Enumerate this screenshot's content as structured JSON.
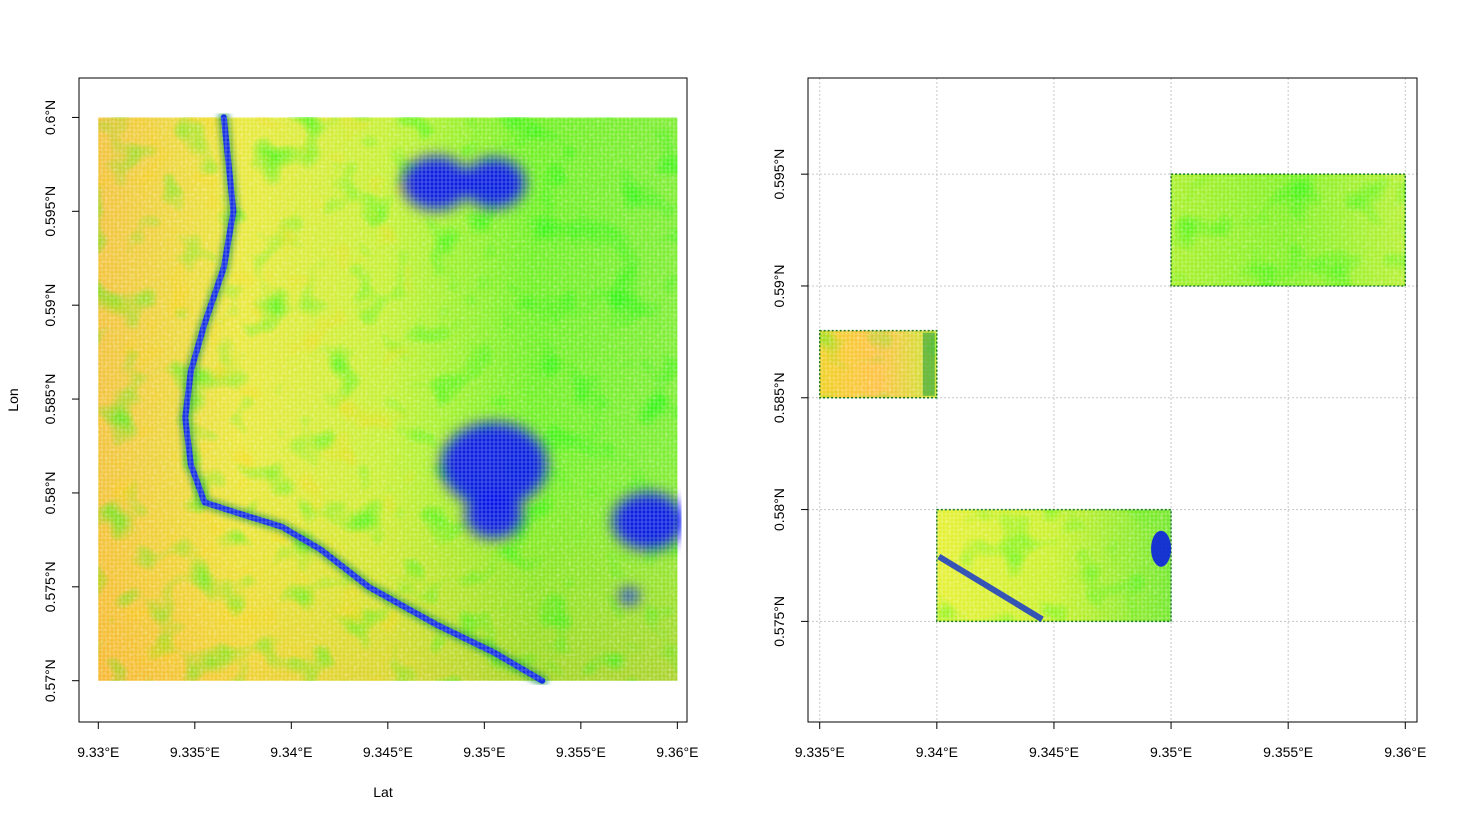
{
  "chart_data": [
    {
      "type": "heatmap",
      "title": "",
      "xlabel": "Lat",
      "ylabel": "Lon",
      "xlim": [
        9.329,
        9.3605
      ],
      "ylim": [
        0.5678,
        0.6021
      ],
      "x_ticks": [
        {
          "value": 9.33,
          "label": "9.33°E"
        },
        {
          "value": 9.335,
          "label": "9.335°E"
        },
        {
          "value": 9.34,
          "label": "9.34°E"
        },
        {
          "value": 9.345,
          "label": "9.345°E"
        },
        {
          "value": 9.35,
          "label": "9.35°E"
        },
        {
          "value": 9.355,
          "label": "9.355°E"
        },
        {
          "value": 9.36,
          "label": "9.36°E"
        }
      ],
      "y_ticks": [
        {
          "value": 0.57,
          "label": "0.57°N"
        },
        {
          "value": 0.575,
          "label": "0.575°N"
        },
        {
          "value": 0.58,
          "label": "0.58°N"
        },
        {
          "value": 0.585,
          "label": "0.585°N"
        },
        {
          "value": 0.59,
          "label": "0.59°N"
        },
        {
          "value": 0.595,
          "label": "0.595°N"
        },
        {
          "value": 0.6,
          "label": "0.6°N"
        }
      ],
      "grid": false,
      "extent": {
        "lat": [
          9.33,
          9.36
        ],
        "lon": [
          0.57,
          0.6
        ]
      },
      "color_scale": [
        "#0000ff",
        "#00c000",
        "#00ff00",
        "#ffff00",
        "#ffa500"
      ],
      "river": [
        [
          9.3365,
          0.6
        ],
        [
          9.3368,
          0.597
        ],
        [
          9.337,
          0.595
        ],
        [
          9.3365,
          0.592
        ],
        [
          9.3355,
          0.589
        ],
        [
          9.3348,
          0.5865
        ],
        [
          9.3345,
          0.584
        ],
        [
          9.3348,
          0.5815
        ],
        [
          9.3355,
          0.5795
        ],
        [
          9.337,
          0.579
        ],
        [
          9.3395,
          0.5782
        ],
        [
          9.3415,
          0.577
        ],
        [
          9.344,
          0.575
        ],
        [
          9.3475,
          0.573
        ],
        [
          9.3505,
          0.5715
        ],
        [
          9.353,
          0.57
        ]
      ],
      "water_bodies": [
        {
          "lat": 9.3505,
          "lon": 0.5815,
          "r": 0.0022
        },
        {
          "lat": 9.3505,
          "lon": 0.5788,
          "r": 0.0012
        },
        {
          "lat": 9.3585,
          "lon": 0.5785,
          "r": 0.0015
        },
        {
          "lat": 9.3505,
          "lon": 0.5965,
          "r": 0.0013
        },
        {
          "lat": 9.3475,
          "lon": 0.5965,
          "r": 0.0014
        },
        {
          "lat": 9.3575,
          "lon": 0.5745,
          "r": 0.0004
        }
      ]
    },
    {
      "type": "heatmap",
      "title": "",
      "xlabel": "",
      "ylabel": "",
      "xlim": [
        9.3345,
        9.3605
      ],
      "ylim": [
        0.5705,
        0.5993
      ],
      "x_ticks": [
        {
          "value": 9.335,
          "label": "9.335°E"
        },
        {
          "value": 9.34,
          "label": "9.34°E"
        },
        {
          "value": 9.345,
          "label": "9.345°E"
        },
        {
          "value": 9.35,
          "label": "9.35°E"
        },
        {
          "value": 9.355,
          "label": "9.355°E"
        },
        {
          "value": 9.36,
          "label": "9.36°E"
        }
      ],
      "y_ticks": [
        {
          "value": 0.575,
          "label": "0.575°N"
        },
        {
          "value": 0.58,
          "label": "0.58°N"
        },
        {
          "value": 0.585,
          "label": "0.585°N"
        },
        {
          "value": 0.59,
          "label": "0.59°N"
        },
        {
          "value": 0.595,
          "label": "0.595°N"
        }
      ],
      "grid": true,
      "color_scale": [
        "#0000ff",
        "#00c000",
        "#00ff00",
        "#ffff00",
        "#ffa500"
      ],
      "tiles": [
        {
          "lat": [
            9.335,
            9.34
          ],
          "lon": [
            0.585,
            0.588
          ]
        },
        {
          "lat": [
            9.34,
            9.35
          ],
          "lon": [
            0.575,
            0.58
          ]
        },
        {
          "lat": [
            9.35,
            9.36
          ],
          "lon": [
            0.59,
            0.595
          ]
        }
      ]
    }
  ]
}
